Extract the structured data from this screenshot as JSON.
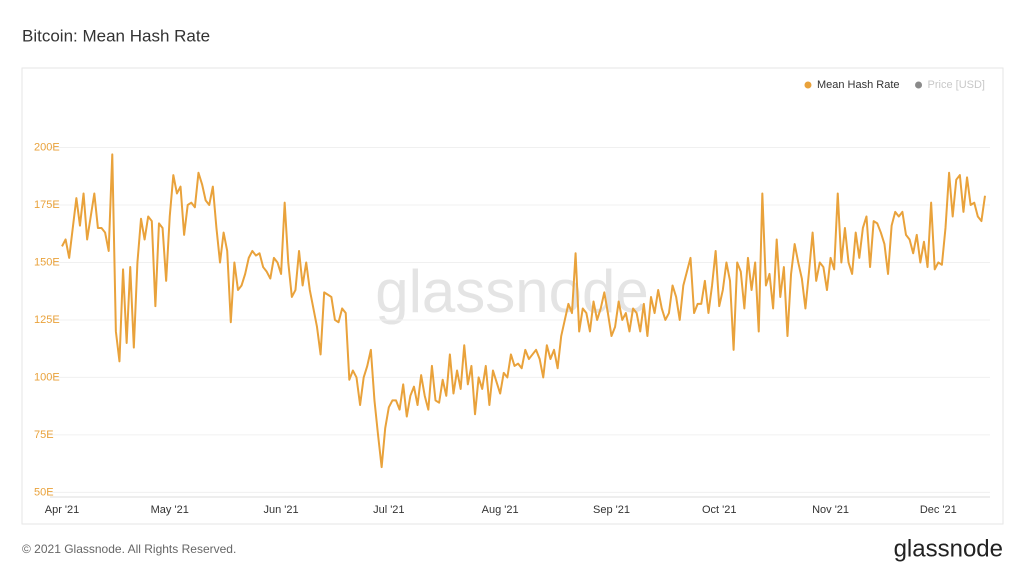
{
  "chart_data": {
    "type": "line",
    "title": "Bitcoin: Mean Hash Rate",
    "watermark": "glassnode",
    "footer": "© 2021 Glassnode. All Rights Reserved.",
    "logo": "glassnode",
    "grid": true,
    "legend": "top-right",
    "ylim": [
      48,
      225
    ],
    "yticks": [
      {
        "value": 50,
        "label": "50E"
      },
      {
        "value": 75,
        "label": "75E"
      },
      {
        "value": 100,
        "label": "100E"
      },
      {
        "value": 125,
        "label": "125E"
      },
      {
        "value": 150,
        "label": "150E"
      },
      {
        "value": 175,
        "label": "175E"
      },
      {
        "value": 200,
        "label": "200E"
      }
    ],
    "categories": [
      "Apr '21",
      null,
      null,
      null,
      null,
      null,
      null,
      null,
      null,
      null,
      null,
      null,
      null,
      null,
      null,
      null,
      null,
      null,
      null,
      null,
      null,
      null,
      null,
      null,
      null,
      null,
      null,
      null,
      null,
      null,
      "May '21",
      null,
      null,
      null,
      null,
      null,
      null,
      null,
      null,
      null,
      null,
      null,
      null,
      null,
      null,
      null,
      null,
      null,
      null,
      null,
      null,
      null,
      null,
      null,
      null,
      null,
      null,
      null,
      null,
      null,
      null,
      "Jun '21",
      null,
      null,
      null,
      null,
      null,
      null,
      null,
      null,
      null,
      null,
      null,
      null,
      null,
      null,
      null,
      null,
      null,
      null,
      null,
      null,
      null,
      null,
      null,
      null,
      null,
      null,
      null,
      null,
      null,
      "Jul '21",
      null,
      null,
      null,
      null,
      null,
      null,
      null,
      null,
      null,
      null,
      null,
      null,
      null,
      null,
      null,
      null,
      null,
      null,
      null,
      null,
      null,
      null,
      null,
      null,
      null,
      null,
      null,
      null,
      null,
      null,
      "Aug '21",
      null,
      null,
      null,
      null,
      null,
      null,
      null,
      null,
      null,
      null,
      null,
      null,
      null,
      null,
      null,
      null,
      null,
      null,
      null,
      null,
      null,
      null,
      null,
      null,
      null,
      null,
      null,
      null,
      null,
      null,
      "Sep '21",
      null,
      null,
      null,
      null,
      null,
      null,
      null,
      null,
      null,
      null,
      null,
      null,
      null,
      null,
      null,
      null,
      null,
      null,
      null,
      null,
      null,
      null,
      null,
      null,
      null,
      null,
      null,
      null,
      null,
      "Oct '21",
      null,
      null,
      null,
      null,
      null,
      null,
      null,
      null,
      null,
      null,
      null,
      null,
      null,
      null,
      null,
      null,
      null,
      null,
      null,
      null,
      null,
      null,
      null,
      null,
      null,
      null,
      null,
      null,
      null,
      null,
      "Nov '21",
      null,
      null,
      null,
      null,
      null,
      null,
      null,
      null,
      null,
      null,
      null,
      null,
      null,
      null,
      null,
      null,
      null,
      null,
      null,
      null,
      null,
      null,
      null,
      null,
      null,
      null,
      null,
      null,
      null,
      "Dec '21",
      null,
      null,
      null,
      null,
      null,
      null,
      null,
      null,
      null,
      null,
      null,
      null,
      null
    ],
    "series": [
      {
        "name": "Mean Hash Rate",
        "color": "#e9a23b",
        "values": [
          157,
          160,
          152,
          165,
          178,
          166,
          180,
          160,
          170,
          180,
          165,
          165,
          163,
          155,
          197,
          120,
          107,
          147,
          115,
          148,
          113,
          150,
          169,
          160,
          170,
          168,
          131,
          167,
          165,
          142,
          170,
          188,
          180,
          183,
          162,
          175,
          176,
          174,
          189,
          184,
          177,
          175,
          183,
          165,
          150,
          163,
          155,
          124,
          150,
          138,
          140,
          145,
          152,
          155,
          153,
          154,
          148,
          146,
          143,
          152,
          150,
          145,
          176,
          150,
          135,
          138,
          155,
          140,
          150,
          138,
          130,
          122,
          110,
          137,
          136,
          135,
          125,
          124,
          130,
          128,
          99,
          103,
          100,
          88,
          100,
          105,
          112,
          90,
          75,
          61,
          78,
          87,
          90,
          90,
          86,
          97,
          83,
          92,
          96,
          88,
          101,
          92,
          86,
          105,
          90,
          89,
          99,
          92,
          110,
          93,
          103,
          95,
          114,
          97,
          105,
          84,
          100,
          95,
          105,
          88,
          103,
          98,
          93,
          102,
          100,
          110,
          105,
          106,
          104,
          112,
          108,
          110,
          112,
          108,
          100,
          114,
          108,
          112,
          104,
          118,
          125,
          132,
          128,
          154,
          120,
          130,
          128,
          120,
          133,
          125,
          130,
          137,
          128,
          118,
          122,
          133,
          125,
          128,
          120,
          130,
          128,
          120,
          132,
          118,
          135,
          128,
          138,
          130,
          125,
          128,
          140,
          135,
          125,
          140,
          146,
          152,
          128,
          132,
          132,
          142,
          128,
          140,
          155,
          131,
          138,
          150,
          142,
          112,
          150,
          146,
          130,
          152,
          138,
          150,
          120,
          180,
          140,
          145,
          130,
          160,
          135,
          148,
          118,
          145,
          158,
          150,
          143,
          130,
          146,
          163,
          142,
          150,
          148,
          138,
          152,
          147,
          180,
          150,
          165,
          150,
          145,
          163,
          152,
          165,
          170,
          148,
          168,
          167,
          163,
          158,
          145,
          166,
          172,
          170,
          172,
          162,
          160,
          154,
          162,
          150,
          159,
          148,
          176,
          147,
          150,
          149,
          165,
          189,
          170,
          186,
          188,
          172,
          187,
          175,
          176,
          170,
          168,
          179
        ]
      }
    ],
    "inactive_series": [
      {
        "name": "Price [USD]",
        "color": "#8a8a8a"
      }
    ]
  }
}
